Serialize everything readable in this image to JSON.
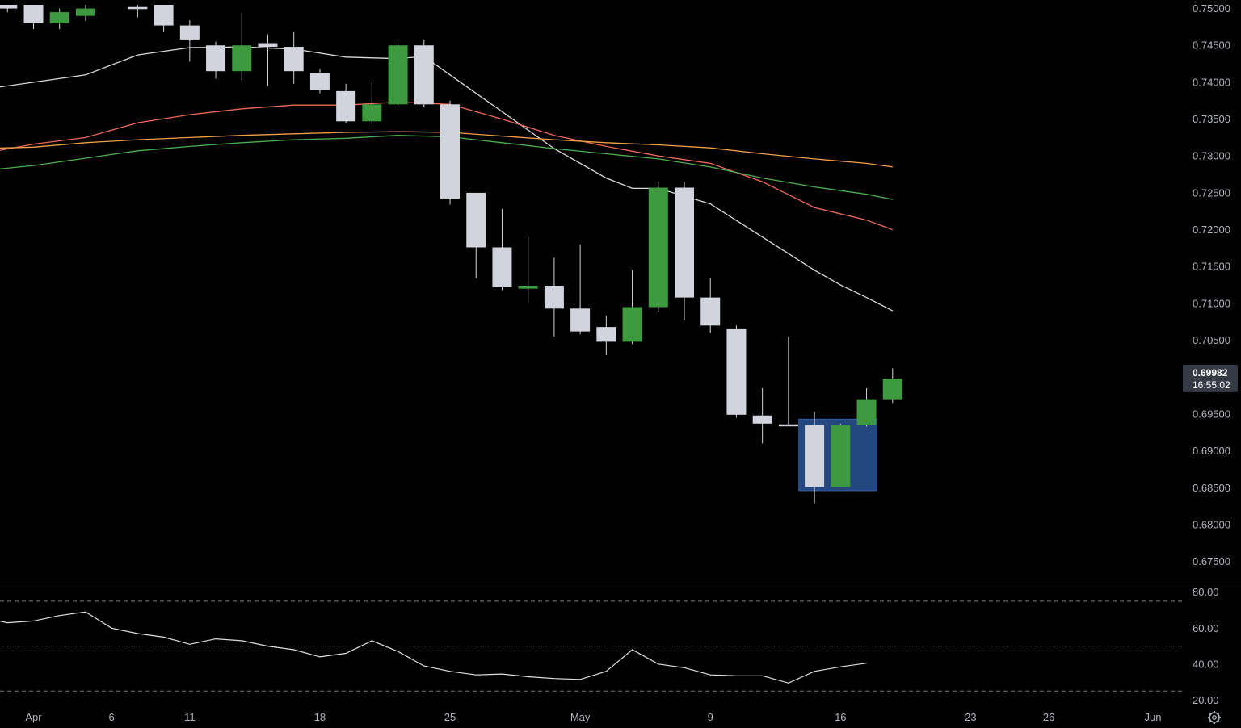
{
  "chart_data": {
    "type": "candlestick",
    "price_axis": {
      "range": [
        0.672,
        0.7505
      ],
      "ticks": [
        "0.75000",
        "0.74500",
        "0.74000",
        "0.73500",
        "0.73000",
        "0.72500",
        "0.72000",
        "0.71500",
        "0.71000",
        "0.70500",
        "0.69500",
        "0.69000",
        "0.68500",
        "0.68000",
        "0.67500"
      ]
    },
    "time_axis": {
      "labels": [
        "Apr",
        "6",
        "11",
        "18",
        "25",
        "May",
        "9",
        "16",
        "23",
        "26",
        "Jun"
      ],
      "label_index": [
        0,
        3,
        6,
        11,
        16,
        21,
        26,
        31,
        36,
        39,
        43
      ]
    },
    "current_price": {
      "value": "0.69982",
      "countdown": "16:55:02",
      "level": 0.69982
    },
    "candles": [
      {
        "i": -1,
        "o": 0.7505,
        "h": 0.7505,
        "l": 0.7495,
        "c": 0.75
      },
      {
        "i": 0,
        "o": 0.7505,
        "h": 0.7505,
        "l": 0.7472,
        "c": 0.748
      },
      {
        "i": 1,
        "o": 0.748,
        "h": 0.75,
        "l": 0.7472,
        "c": 0.7495
      },
      {
        "i": 2,
        "o": 0.749,
        "h": 0.7505,
        "l": 0.7483,
        "c": 0.75
      },
      {
        "i": 4,
        "o": 0.7502,
        "h": 0.7505,
        "l": 0.7488,
        "c": 0.75
      },
      {
        "i": 5,
        "o": 0.7505,
        "h": 0.7505,
        "l": 0.7468,
        "c": 0.7477
      },
      {
        "i": 6,
        "o": 0.7477,
        "h": 0.7484,
        "l": 0.7428,
        "c": 0.7458
      },
      {
        "i": 7,
        "o": 0.745,
        "h": 0.7455,
        "l": 0.7405,
        "c": 0.7415
      },
      {
        "i": 8,
        "o": 0.7415,
        "h": 0.7494,
        "l": 0.7403,
        "c": 0.745
      },
      {
        "i": 9,
        "o": 0.7453,
        "h": 0.7465,
        "l": 0.7395,
        "c": 0.7448
      },
      {
        "i": 10,
        "o": 0.7448,
        "h": 0.7468,
        "l": 0.7398,
        "c": 0.7415
      },
      {
        "i": 11,
        "o": 0.7413,
        "h": 0.7418,
        "l": 0.7385,
        "c": 0.739
      },
      {
        "i": 12,
        "o": 0.7388,
        "h": 0.7398,
        "l": 0.7345,
        "c": 0.7347
      },
      {
        "i": 13,
        "o": 0.7347,
        "h": 0.74,
        "l": 0.7343,
        "c": 0.737
      },
      {
        "i": 14,
        "o": 0.737,
        "h": 0.7458,
        "l": 0.7366,
        "c": 0.745
      },
      {
        "i": 15,
        "o": 0.745,
        "h": 0.7458,
        "l": 0.7366,
        "c": 0.737
      },
      {
        "i": 16,
        "o": 0.737,
        "h": 0.7375,
        "l": 0.7234,
        "c": 0.7242
      },
      {
        "i": 17,
        "o": 0.725,
        "h": 0.725,
        "l": 0.7134,
        "c": 0.7176
      },
      {
        "i": 18,
        "o": 0.7176,
        "h": 0.7228,
        "l": 0.7118,
        "c": 0.7122
      },
      {
        "i": 19,
        "o": 0.712,
        "h": 0.719,
        "l": 0.71,
        "c": 0.7124
      },
      {
        "i": 20,
        "o": 0.7124,
        "h": 0.7162,
        "l": 0.7055,
        "c": 0.7093
      },
      {
        "i": 21,
        "o": 0.7093,
        "h": 0.718,
        "l": 0.7058,
        "c": 0.7062
      },
      {
        "i": 22,
        "o": 0.7068,
        "h": 0.7083,
        "l": 0.703,
        "c": 0.7048
      },
      {
        "i": 23,
        "o": 0.7048,
        "h": 0.7145,
        "l": 0.7045,
        "c": 0.7095
      },
      {
        "i": 24,
        "o": 0.7095,
        "h": 0.7265,
        "l": 0.7088,
        "c": 0.7257
      },
      {
        "i": 25,
        "o": 0.7257,
        "h": 0.7265,
        "l": 0.7077,
        "c": 0.7108
      },
      {
        "i": 26,
        "o": 0.7108,
        "h": 0.7135,
        "l": 0.706,
        "c": 0.707
      },
      {
        "i": 27,
        "o": 0.7065,
        "h": 0.707,
        "l": 0.6945,
        "c": 0.6949
      },
      {
        "i": 28,
        "o": 0.6948,
        "h": 0.6985,
        "l": 0.691,
        "c": 0.6937
      },
      {
        "i": 29,
        "o": 0.6936,
        "h": 0.7055,
        "l": 0.6936,
        "c": 0.6935
      },
      {
        "i": 30,
        "o": 0.6935,
        "h": 0.6953,
        "l": 0.6829,
        "c": 0.6851
      },
      {
        "i": 31,
        "o": 0.6851,
        "h": 0.6937,
        "l": 0.6851,
        "c": 0.6935
      },
      {
        "i": 32,
        "o": 0.6935,
        "h": 0.6985,
        "l": 0.6933,
        "c": 0.697
      },
      {
        "i": 33,
        "o": 0.697,
        "h": 0.7012,
        "l": 0.6965,
        "c": 0.6998
      }
    ],
    "highlight_box": {
      "from_i": 29.4,
      "to_i": 32.4,
      "top": 0.6943,
      "bottom": 0.6846,
      "color": "#2f5fa8"
    },
    "moving_averages": [
      {
        "color": "#d9d9d9",
        "points": [
          [
            -2,
            0.739
          ],
          [
            0,
            0.74
          ],
          [
            2,
            0.741
          ],
          [
            4,
            0.7437
          ],
          [
            6,
            0.7447
          ],
          [
            8,
            0.7448
          ],
          [
            10,
            0.7445
          ],
          [
            12,
            0.7434
          ],
          [
            14,
            0.7432
          ],
          [
            15,
            0.7435
          ],
          [
            16,
            0.741
          ],
          [
            18,
            0.736
          ],
          [
            20,
            0.731
          ],
          [
            22,
            0.727
          ],
          [
            23,
            0.7256
          ],
          [
            24,
            0.7256
          ],
          [
            26,
            0.7235
          ],
          [
            28,
            0.719
          ],
          [
            30,
            0.7145
          ],
          [
            31,
            0.7125
          ],
          [
            32,
            0.7108
          ],
          [
            33,
            0.709
          ]
        ]
      },
      {
        "color": "#ef6a5a",
        "points": [
          [
            -2,
            0.7303
          ],
          [
            0,
            0.7316
          ],
          [
            2,
            0.7325
          ],
          [
            4,
            0.7345
          ],
          [
            6,
            0.7356
          ],
          [
            8,
            0.7364
          ],
          [
            10,
            0.7369
          ],
          [
            12,
            0.7369
          ],
          [
            14,
            0.7373
          ],
          [
            16,
            0.737
          ],
          [
            18,
            0.735
          ],
          [
            20,
            0.7328
          ],
          [
            22,
            0.7313
          ],
          [
            24,
            0.73
          ],
          [
            26,
            0.729
          ],
          [
            28,
            0.7265
          ],
          [
            30,
            0.723
          ],
          [
            32,
            0.7213
          ],
          [
            33,
            0.72
          ]
        ]
      },
      {
        "color": "#4caf50",
        "points": [
          [
            -2,
            0.728
          ],
          [
            0,
            0.7287
          ],
          [
            2,
            0.7297
          ],
          [
            4,
            0.7307
          ],
          [
            6,
            0.7313
          ],
          [
            8,
            0.7318
          ],
          [
            10,
            0.7322
          ],
          [
            12,
            0.7324
          ],
          [
            14,
            0.7328
          ],
          [
            16,
            0.7326
          ],
          [
            18,
            0.7318
          ],
          [
            20,
            0.731
          ],
          [
            22,
            0.7303
          ],
          [
            24,
            0.7296
          ],
          [
            26,
            0.7285
          ],
          [
            28,
            0.727
          ],
          [
            30,
            0.7258
          ],
          [
            32,
            0.7248
          ],
          [
            33,
            0.7241
          ]
        ]
      },
      {
        "color": "#f0a04b",
        "points": [
          [
            -2,
            0.731
          ],
          [
            0,
            0.7312
          ],
          [
            2,
            0.7318
          ],
          [
            4,
            0.7322
          ],
          [
            6,
            0.7325
          ],
          [
            8,
            0.7328
          ],
          [
            10,
            0.733
          ],
          [
            12,
            0.7332
          ],
          [
            14,
            0.7333
          ],
          [
            16,
            0.7332
          ],
          [
            18,
            0.7327
          ],
          [
            20,
            0.7322
          ],
          [
            22,
            0.7318
          ],
          [
            24,
            0.7315
          ],
          [
            26,
            0.7311
          ],
          [
            28,
            0.7303
          ],
          [
            30,
            0.7296
          ],
          [
            32,
            0.729
          ],
          [
            33,
            0.7285
          ]
        ]
      }
    ],
    "oscillator": {
      "range": [
        17.5,
        83
      ],
      "ticks": [
        "80.00",
        "60.00",
        "40.00",
        "20.00"
      ],
      "levels": [
        75,
        50,
        25
      ],
      "values": [
        [
          -2,
          66
        ],
        [
          -1,
          63
        ],
        [
          0,
          64
        ],
        [
          1,
          67
        ],
        [
          2,
          69
        ],
        [
          3,
          60
        ],
        [
          4,
          57
        ],
        [
          5,
          55
        ],
        [
          6,
          51
        ],
        [
          7,
          54
        ],
        [
          8,
          53
        ],
        [
          9,
          50
        ],
        [
          10,
          48
        ],
        [
          11,
          44
        ],
        [
          12,
          46
        ],
        [
          13,
          53
        ],
        [
          14,
          47
        ],
        [
          15,
          39
        ],
        [
          16,
          36
        ],
        [
          17,
          34
        ],
        [
          18,
          34.5
        ],
        [
          19,
          33
        ],
        [
          20,
          32
        ],
        [
          21,
          31.5
        ],
        [
          22,
          36
        ],
        [
          23,
          48
        ],
        [
          24,
          40
        ],
        [
          25,
          38
        ],
        [
          26,
          34
        ],
        [
          27,
          33.5
        ],
        [
          28,
          33.5
        ],
        [
          29,
          29.5
        ],
        [
          30,
          36
        ],
        [
          31,
          38.5
        ],
        [
          32,
          40.5
        ]
      ]
    }
  }
}
